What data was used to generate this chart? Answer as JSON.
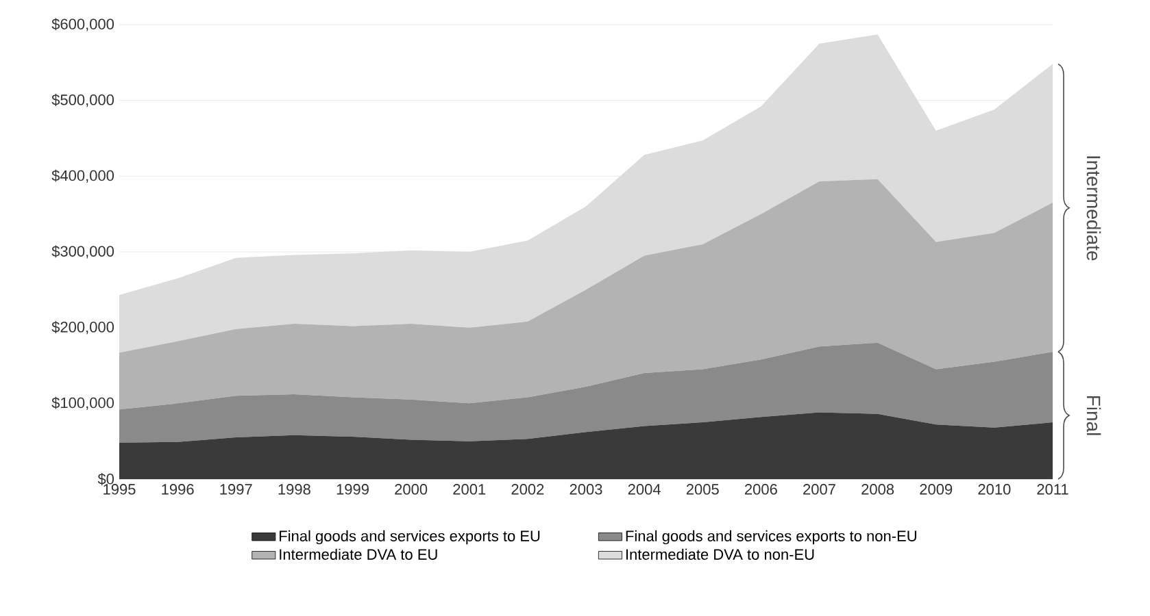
{
  "chart_data": {
    "type": "area",
    "stacked": true,
    "x": [
      1995,
      1996,
      1997,
      1998,
      1999,
      2000,
      2001,
      2002,
      2003,
      2004,
      2005,
      2006,
      2007,
      2008,
      2009,
      2010,
      2011
    ],
    "series": [
      {
        "name": "Final goods and services exports to EU",
        "color": "#3a3a3a",
        "values": [
          48000,
          49000,
          55000,
          58000,
          56000,
          52000,
          50000,
          53000,
          62000,
          70000,
          75000,
          82000,
          88000,
          86000,
          72000,
          68000,
          75000
        ]
      },
      {
        "name": "Final goods and services exports to non-EU",
        "color": "#8a8a8a",
        "values": [
          44000,
          51000,
          55000,
          54000,
          52000,
          53000,
          50000,
          55000,
          60000,
          70000,
          70000,
          76000,
          87000,
          94000,
          73000,
          87000,
          93000
        ]
      },
      {
        "name": "Intermediate DVA to EU",
        "color": "#b3b3b3",
        "values": [
          75000,
          82000,
          88000,
          93000,
          94000,
          100000,
          100000,
          100000,
          128000,
          155000,
          165000,
          192000,
          218000,
          216000,
          168000,
          170000,
          197000
        ]
      },
      {
        "name": "Intermediate DVA to non-EU",
        "color": "#dcdcdc",
        "values": [
          76000,
          83000,
          94000,
          91000,
          96000,
          97000,
          100000,
          107000,
          110000,
          133000,
          137000,
          142000,
          182000,
          191000,
          147000,
          163000,
          183000
        ]
      }
    ],
    "xlim": [
      1995,
      2011
    ],
    "xticks": [
      1995,
      1996,
      1997,
      1998,
      1999,
      2000,
      2001,
      2002,
      2003,
      2004,
      2005,
      2006,
      2007,
      2008,
      2009,
      2010,
      2011
    ],
    "ylim": [
      0,
      600000
    ],
    "yticks": [
      {
        "value": 0,
        "label": "$0"
      },
      {
        "value": 100000,
        "label": "$100,000"
      },
      {
        "value": 200000,
        "label": "$200,000"
      },
      {
        "value": 300000,
        "label": "$300,000"
      },
      {
        "value": 400000,
        "label": "$400,000"
      },
      {
        "value": 500000,
        "label": "$500,000"
      },
      {
        "value": 600000,
        "label": "$600,000"
      }
    ],
    "grid": "y",
    "legend": "bottom",
    "annotations": [
      "Final",
      "Intermediate"
    ]
  }
}
